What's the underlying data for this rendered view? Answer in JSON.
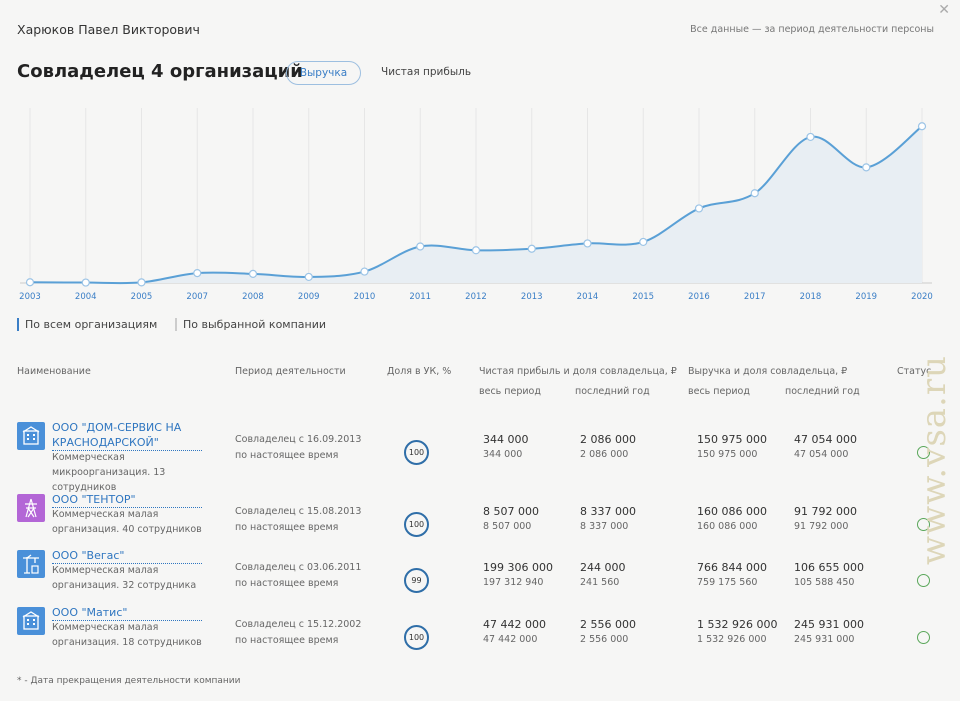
{
  "header": {
    "person": "Харюков Павел Викторович",
    "period_note": "Все данные — за период деятельности персоны",
    "close_icon": "close-icon",
    "title": "Совладелец 4 организаций",
    "tab_revenue": "Выручка",
    "tab_profit": "Чистая прибыль"
  },
  "chart_data": {
    "type": "area",
    "x": [
      "2003",
      "2004",
      "2005",
      "2007",
      "2008",
      "2009",
      "2010",
      "2011",
      "2012",
      "2013",
      "2014",
      "2015",
      "2016",
      "2017",
      "2018",
      "2019",
      "2020"
    ],
    "values": [
      0.5,
      0.3,
      0.4,
      6.5,
      6,
      4,
      7.5,
      24,
      21.5,
      22.5,
      26,
      27,
      49,
      59,
      96,
      76,
      103
    ],
    "ylim": [
      0,
      115
    ],
    "line_color": "#5aa0d6",
    "fill_color": "#e8eef3",
    "grid": true
  },
  "filters": {
    "all": "По всем организациям",
    "selected": "По выбранной компании"
  },
  "table": {
    "h_name": "Наименование",
    "h_period": "Период деятельности",
    "h_share": "Доля в УК, %",
    "h_profit": "Чистая прибыль и доля совладельца, ₽",
    "h_revenue": "Выручка и доля совладельца, ₽",
    "h_status": "Статус",
    "h_profit_all": "весь период",
    "h_profit_last": "последний год",
    "h_rev_all": "весь период",
    "h_rev_last": "последний год",
    "rows": [
      {
        "name": "ООО \"ДОМ-СЕРВИС НА КРАСНОДАРСКОЙ\"",
        "desc": "Коммерческая микроорганизация. 13 сотрудников",
        "period": "Совладелец с 16.09.2013 по настоящее время",
        "share": "100",
        "profit_all": "344 000",
        "profit_all_share": "344 000",
        "profit_last": "2 086 000",
        "profit_last_share": "2 086 000",
        "rev_all": "150 975 000",
        "rev_all_share": "150 975 000",
        "rev_last": "47 054 000",
        "rev_last_share": "47 054 000",
        "icon": "building-icon",
        "color": "#4a90d9"
      },
      {
        "name": "ООО \"ТЕНТОР\"",
        "desc": "Коммерческая малая организация. 40 сотрудников",
        "period": "Совладелец с 15.08.2013 по настоящее время",
        "share": "100",
        "profit_all": "8 507 000",
        "profit_all_share": "8 507 000",
        "profit_last": "8 337 000",
        "profit_last_share": "8 337 000",
        "rev_all": "160 086 000",
        "rev_all_share": "160 086 000",
        "rev_last": "91 792 000",
        "rev_last_share": "91 792 000",
        "icon": "power-tower-icon",
        "color": "#b366d6"
      },
      {
        "name": "ООО \"Вегас\"",
        "desc": "Коммерческая малая организация. 32 сотрудника",
        "period": "Совладелец с 03.06.2011 по настоящее время",
        "share": "99",
        "profit_all": "199 306 000",
        "profit_all_share": "197 312 940",
        "profit_last": "244 000",
        "profit_last_share": "241 560",
        "rev_all": "766 844 000",
        "rev_all_share": "759 175 560",
        "rev_last": "106 655 000",
        "rev_last_share": "105 588 450",
        "icon": "crane-icon",
        "color": "#4a90d9"
      },
      {
        "name": "ООО \"Матис\"",
        "desc": "Коммерческая малая организация. 18 сотрудников",
        "period": "Совладелец с 15.12.2002 по настоящее время",
        "share": "100",
        "profit_all": "47 442 000",
        "profit_all_share": "47 442 000",
        "profit_last": "2 556 000",
        "profit_last_share": "2 556 000",
        "rev_all": "1 532 926 000",
        "rev_all_share": "1 532 926 000",
        "rev_last": "245 931 000",
        "rev_last_share": "245 931 000",
        "icon": "building-icon",
        "color": "#4a90d9"
      }
    ]
  },
  "footnote": "* - Дата прекращения деятельности компании",
  "watermark": "www.vsa.ru"
}
